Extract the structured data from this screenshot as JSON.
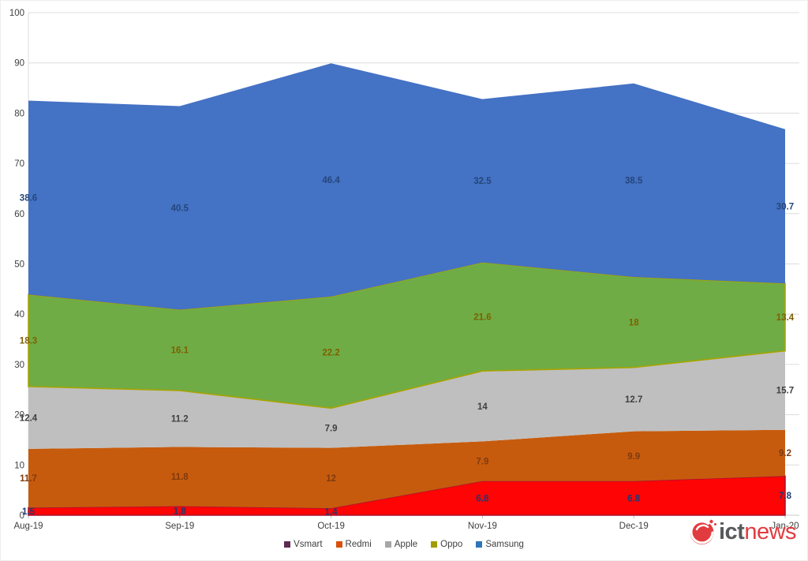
{
  "chart_data": {
    "type": "area",
    "stacked": true,
    "title": "",
    "xlabel": "",
    "ylabel": "",
    "categories": [
      "Aug-19",
      "Sep-19",
      "Oct-19",
      "Nov-19",
      "Dec-19",
      "Jan-20"
    ],
    "series": [
      {
        "name": "Vsmart",
        "values": [
          1.5,
          1.8,
          1.4,
          6.8,
          6.8,
          7.8
        ],
        "fill": "#FE0404",
        "stroke": "#A81530",
        "label_color": "#1F3875",
        "legend_color": "#5E2A52"
      },
      {
        "name": "Redmi",
        "values": [
          11.7,
          11.8,
          12,
          7.9,
          9.9,
          9.2
        ],
        "fill": "#C75B0D",
        "stroke": "",
        "label_color": "#7E3A10",
        "legend_color": "#D9500D"
      },
      {
        "name": "Apple",
        "values": [
          12.4,
          11.2,
          7.9,
          14,
          12.7,
          15.7
        ],
        "fill": "#BFBFBF",
        "stroke": "",
        "label_color": "#404040",
        "legend_color": "#A6A6A6"
      },
      {
        "name": "Oppo",
        "values": [
          18.3,
          16.1,
          22.2,
          21.6,
          18,
          13.4
        ],
        "fill": "#6FAC46",
        "stroke": "#A8A400",
        "label_color": "#7F6000",
        "legend_color": "#A39B00"
      },
      {
        "name": "Samsung",
        "values": [
          38.6,
          40.5,
          46.4,
          32.5,
          38.5,
          30.7
        ],
        "fill": "#4472C4",
        "stroke": "",
        "label_color": "#24477C",
        "legend_color": "#2E75B6"
      }
    ],
    "ylim": [
      0,
      100
    ],
    "ytick_step": 10,
    "grid": true,
    "legend_position": "bottom",
    "axis_text_color": "#3F3F3F",
    "grid_color": "#DCDCDC"
  },
  "logo": {
    "text_prefix": "ict",
    "text_suffix": "news",
    "prefix_color": "#58595B",
    "suffix_color": "#E23B3F"
  }
}
